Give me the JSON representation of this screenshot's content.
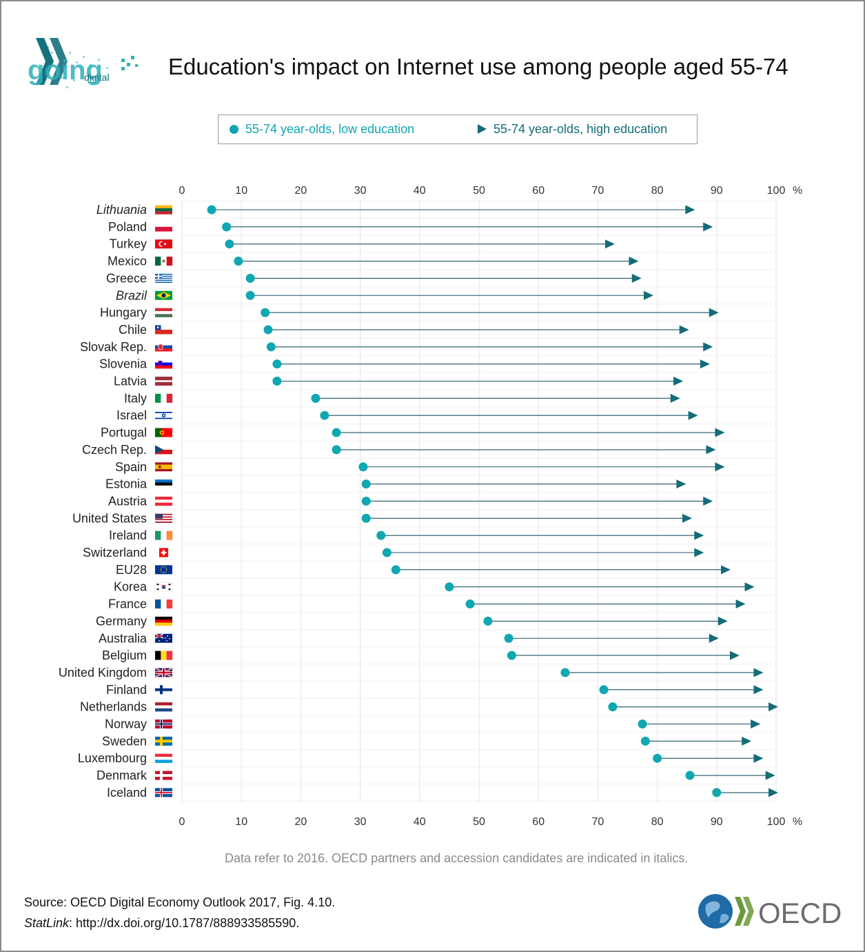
{
  "header": {
    "title": "Education's impact on Internet use among people aged 55-74",
    "logo_text": "going digital",
    "logo_word": "digital"
  },
  "legend": {
    "low_label": "55-74 year-olds, low education",
    "high_label": "55-74 year-olds, high education"
  },
  "footer": {
    "note": "Data refer to 2016. OECD partners and accession candidates are indicated in italics.",
    "source": "Source: OECD Digital Economy Outlook 2017, Fig. 4.10.",
    "statlink_label": "StatLink",
    "statlink_url": ": http://dx.doi.org/10.1787/888933585590.",
    "oecd_logo_text": "OECD"
  },
  "colors": {
    "low": "#0fa7b0",
    "high": "#136c78",
    "line": "#1a5560",
    "grid": "#e3e3e3"
  },
  "chart_data": {
    "type": "dot-arrow",
    "title": "Education's impact on Internet use among people aged 55-74",
    "xlim": [
      0,
      100
    ],
    "xticks": [
      0,
      10,
      20,
      30,
      40,
      50,
      60,
      70,
      80,
      90,
      100
    ],
    "xunit": "%",
    "axis_position": "top and bottom",
    "series": [
      {
        "name": "55-74 year-olds, low education",
        "marker": "circle"
      },
      {
        "name": "55-74 year-olds, high education",
        "marker": "triangle"
      }
    ],
    "rows": [
      {
        "country": "Lithuania",
        "italic": true,
        "flag": "lithuania",
        "low": 5,
        "high": 86
      },
      {
        "country": "Poland",
        "italic": false,
        "flag": "poland",
        "low": 7.5,
        "high": 89
      },
      {
        "country": "Turkey",
        "italic": false,
        "flag": "turkey",
        "low": 8,
        "high": 72.5
      },
      {
        "country": "Mexico",
        "italic": false,
        "flag": "mexico",
        "low": 9.5,
        "high": 76.5
      },
      {
        "country": "Greece",
        "italic": false,
        "flag": "greece",
        "low": 11.5,
        "high": 77
      },
      {
        "country": "Brazil",
        "italic": true,
        "flag": "brazil",
        "low": 11.5,
        "high": 79
      },
      {
        "country": "Hungary",
        "italic": false,
        "flag": "hungary",
        "low": 14,
        "high": 90
      },
      {
        "country": "Chile",
        "italic": false,
        "flag": "chile",
        "low": 14.5,
        "high": 85
      },
      {
        "country": "Slovak Rep.",
        "italic": false,
        "flag": "slovakia",
        "low": 15,
        "high": 89
      },
      {
        "country": "Slovenia",
        "italic": false,
        "flag": "slovenia",
        "low": 16,
        "high": 88.5
      },
      {
        "country": "Latvia",
        "italic": false,
        "flag": "latvia",
        "low": 16,
        "high": 84
      },
      {
        "country": "Italy",
        "italic": false,
        "flag": "italy",
        "low": 22.5,
        "high": 83.5
      },
      {
        "country": "Israel",
        "italic": false,
        "flag": "israel",
        "low": 24,
        "high": 86.5
      },
      {
        "country": "Portugal",
        "italic": false,
        "flag": "portugal",
        "low": 26,
        "high": 91
      },
      {
        "country": "Czech Rep.",
        "italic": false,
        "flag": "czech",
        "low": 26,
        "high": 89.5
      },
      {
        "country": "Spain",
        "italic": false,
        "flag": "spain",
        "low": 30.5,
        "high": 91
      },
      {
        "country": "Estonia",
        "italic": false,
        "flag": "estonia",
        "low": 31,
        "high": 84.5
      },
      {
        "country": "Austria",
        "italic": false,
        "flag": "austria",
        "low": 31,
        "high": 89
      },
      {
        "country": "United States",
        "italic": false,
        "flag": "usa",
        "low": 31,
        "high": 85.5
      },
      {
        "country": "Ireland",
        "italic": false,
        "flag": "ireland",
        "low": 33.5,
        "high": 87.5
      },
      {
        "country": "Switzerland",
        "italic": false,
        "flag": "switzerland",
        "low": 34.5,
        "high": 87.5
      },
      {
        "country": "EU28",
        "italic": false,
        "flag": "eu",
        "low": 36,
        "high": 92
      },
      {
        "country": "Korea",
        "italic": false,
        "flag": "korea",
        "low": 45,
        "high": 96
      },
      {
        "country": "France",
        "italic": false,
        "flag": "france",
        "low": 48.5,
        "high": 94.5
      },
      {
        "country": "Germany",
        "italic": false,
        "flag": "germany",
        "low": 51.5,
        "high": 91.5
      },
      {
        "country": "Australia",
        "italic": false,
        "flag": "australia",
        "low": 55,
        "high": 90
      },
      {
        "country": "Belgium",
        "italic": false,
        "flag": "belgium",
        "low": 55.5,
        "high": 93.5
      },
      {
        "country": "United Kingdom",
        "italic": false,
        "flag": "uk",
        "low": 64.5,
        "high": 97.5
      },
      {
        "country": "Finland",
        "italic": false,
        "flag": "finland",
        "low": 71,
        "high": 97.5
      },
      {
        "country": "Netherlands",
        "italic": false,
        "flag": "netherlands",
        "low": 72.5,
        "high": 100
      },
      {
        "country": "Norway",
        "italic": false,
        "flag": "norway",
        "low": 77.5,
        "high": 97
      },
      {
        "country": "Sweden",
        "italic": false,
        "flag": "sweden",
        "low": 78,
        "high": 95.5
      },
      {
        "country": "Luxembourg",
        "italic": false,
        "flag": "luxembourg",
        "low": 80,
        "high": 97.5
      },
      {
        "country": "Denmark",
        "italic": false,
        "flag": "denmark",
        "low": 85.5,
        "high": 99.5
      },
      {
        "country": "Iceland",
        "italic": false,
        "flag": "iceland",
        "low": 90,
        "high": 100
      }
    ]
  }
}
